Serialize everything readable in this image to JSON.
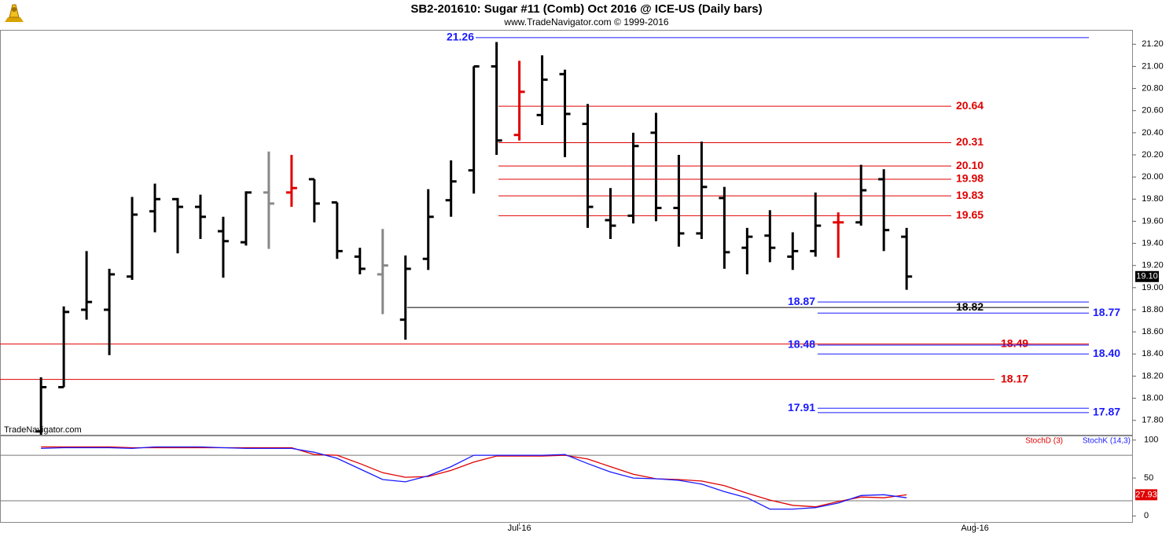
{
  "chart_data": [
    {
      "type": "ohlc",
      "title": "SB2-201610:  Sugar #11 (Comb) Oct 2016 @ ICE-US  (Daily bars)",
      "subtitle": "www.TradeNavigator.com © 1999-2016",
      "watermark": "TradeNavigator.com",
      "xlim": [
        -1.8,
        47.9
      ],
      "ylim": [
        17.67,
        21.33
      ],
      "yticks": [
        {
          "value": 17.8,
          "label": "17.80"
        },
        {
          "value": 18,
          "label": "18.00"
        },
        {
          "value": 18.2,
          "label": "18.20"
        },
        {
          "value": 18.4,
          "label": "18.40"
        },
        {
          "value": 18.6,
          "label": "18.60"
        },
        {
          "value": 18.8,
          "label": "18.80"
        },
        {
          "value": 19,
          "label": "19.00"
        },
        {
          "value": 19.2,
          "label": "19.20"
        },
        {
          "value": 19.4,
          "label": "19.40"
        },
        {
          "value": 19.6,
          "label": "19.60"
        },
        {
          "value": 19.8,
          "label": "19.80"
        },
        {
          "value": 20,
          "label": "20.00"
        },
        {
          "value": 20.2,
          "label": "20.20"
        },
        {
          "value": 20.4,
          "label": "20.40"
        },
        {
          "value": 20.6,
          "label": "20.60"
        },
        {
          "value": 20.8,
          "label": "20.80"
        },
        {
          "value": 21,
          "label": "21.00"
        },
        {
          "value": 21.2,
          "label": "21.20"
        }
      ],
      "open": [
        17.7,
        18.1,
        18.8,
        18.8,
        19.1,
        19.69,
        19.8,
        19.73,
        19.51,
        19.41,
        19.86,
        19.86,
        19.98,
        19.77,
        19.28,
        19.12,
        18.71,
        19.26,
        19.79,
        20.06,
        21.0,
        20.38,
        20.56,
        20.93,
        20.48,
        19.61,
        19.65,
        20.4,
        19.72,
        19.49,
        19.81,
        19.36,
        19.47,
        19.28,
        19.33,
        19.59,
        19.59,
        19.98,
        19.46
      ],
      "high": [
        18.19,
        18.83,
        19.33,
        19.17,
        19.82,
        19.94,
        19.81,
        19.84,
        19.64,
        19.87,
        20.23,
        20.2,
        19.98,
        19.77,
        19.36,
        19.53,
        19.29,
        19.89,
        20.15,
        21.0,
        21.22,
        21.05,
        21.1,
        20.97,
        20.66,
        19.9,
        20.4,
        20.58,
        20.2,
        20.32,
        19.91,
        19.54,
        19.7,
        19.5,
        19.86,
        19.68,
        20.11,
        20.07,
        19.54
      ],
      "low": [
        17.67,
        18.1,
        18.71,
        18.39,
        19.07,
        19.5,
        19.31,
        19.44,
        19.09,
        19.38,
        19.35,
        19.73,
        19.59,
        19.26,
        19.12,
        18.76,
        18.53,
        19.16,
        19.64,
        19.85,
        20.2,
        20.33,
        20.47,
        20.18,
        19.54,
        19.44,
        19.58,
        19.6,
        19.37,
        19.44,
        19.17,
        19.12,
        19.23,
        19.16,
        19.28,
        19.27,
        19.56,
        19.33,
        18.98
      ],
      "close": [
        18.1,
        18.78,
        18.87,
        19.12,
        19.66,
        19.8,
        19.73,
        19.64,
        19.42,
        19.86,
        19.76,
        19.9,
        19.76,
        19.33,
        19.17,
        19.2,
        19.17,
        19.64,
        19.96,
        21.0,
        20.33,
        20.77,
        20.88,
        20.57,
        19.73,
        19.56,
        20.28,
        19.72,
        19.49,
        19.91,
        19.32,
        19.46,
        19.36,
        19.33,
        19.56,
        19.59,
        19.88,
        19.52,
        19.1
      ],
      "colors": [
        "#000000",
        "#000000",
        "#000000",
        "#000000",
        "#000000",
        "#000000",
        "#000000",
        "#000000",
        "#000000",
        "#000000",
        "#888888",
        "#e00000",
        "#000000",
        "#000000",
        "#000000",
        "#888888",
        "#000000",
        "#000000",
        "#000000",
        "#000000",
        "#000000",
        "#e00000",
        "#000000",
        "#000000",
        "#000000",
        "#000000",
        "#000000",
        "#000000",
        "#000000",
        "#000000",
        "#000000",
        "#000000",
        "#000000",
        "#000000",
        "#000000",
        "#e00000",
        "#000000",
        "#000000",
        "#000000"
      ],
      "last_price": {
        "value": 19.1,
        "label": "19.10"
      },
      "levels": [
        {
          "value": 21.26,
          "color": "#1a1aff"
        },
        {
          "value": 20.64,
          "color": "#e00000"
        },
        {
          "value": 20.31,
          "color": "#e00000"
        },
        {
          "value": 20.1,
          "label": "20.10",
          "color": "#e00000"
        },
        {
          "value": 19.98,
          "color": "#e00000"
        },
        {
          "value": 19.83,
          "color": "#e00000"
        },
        {
          "value": 19.65,
          "color": "#e00000"
        },
        {
          "value": 18.82,
          "color": "#000000"
        },
        {
          "value": 18.87,
          "color": "#1a1aff"
        },
        {
          "value": 18.77,
          "color": "#1a1aff"
        },
        {
          "value": 18.49,
          "color": "#e00000"
        },
        {
          "value": 18.48,
          "color": "#1a1aff"
        },
        {
          "value": 18.4,
          "label": "18.40",
          "color": "#1a1aff"
        },
        {
          "value": 18.17,
          "color": "#e00000"
        },
        {
          "value": 17.91,
          "color": "#1a1aff"
        },
        {
          "value": 17.87,
          "color": "#1a1aff"
        }
      ]
    },
    {
      "type": "line",
      "xlim": [
        -1.8,
        47.9
      ],
      "ylim": [
        -9,
        105
      ],
      "yticks": [
        0,
        50,
        100
      ],
      "xticks": [
        {
          "value": 21,
          "label": "Jul-16"
        },
        {
          "value": 41,
          "label": "Aug-16"
        }
      ],
      "reference_lines": [
        80,
        20
      ],
      "series": [
        {
          "name": "StochD (3)",
          "color": "#e00000",
          "values": [
            91,
            91,
            91,
            91,
            90,
            90,
            90,
            90,
            90,
            90,
            90,
            90,
            81,
            80,
            69,
            57,
            51,
            52,
            60,
            71,
            79,
            79,
            79,
            80,
            75,
            65,
            55,
            49,
            48,
            46,
            40,
            30,
            21,
            14,
            12,
            19,
            25,
            24,
            27.93
          ]
        },
        {
          "name": "StochK (14,3)",
          "color": "#1a1aff",
          "values": [
            89,
            90,
            90,
            90,
            89,
            91,
            91,
            91,
            90,
            89,
            89,
            89,
            84,
            76,
            62,
            48,
            45,
            53,
            65,
            80,
            80,
            80,
            80,
            81,
            69,
            58,
            50,
            49,
            47,
            42,
            32,
            24,
            9,
            9,
            11,
            17,
            27,
            28,
            24
          ]
        }
      ]
    }
  ]
}
